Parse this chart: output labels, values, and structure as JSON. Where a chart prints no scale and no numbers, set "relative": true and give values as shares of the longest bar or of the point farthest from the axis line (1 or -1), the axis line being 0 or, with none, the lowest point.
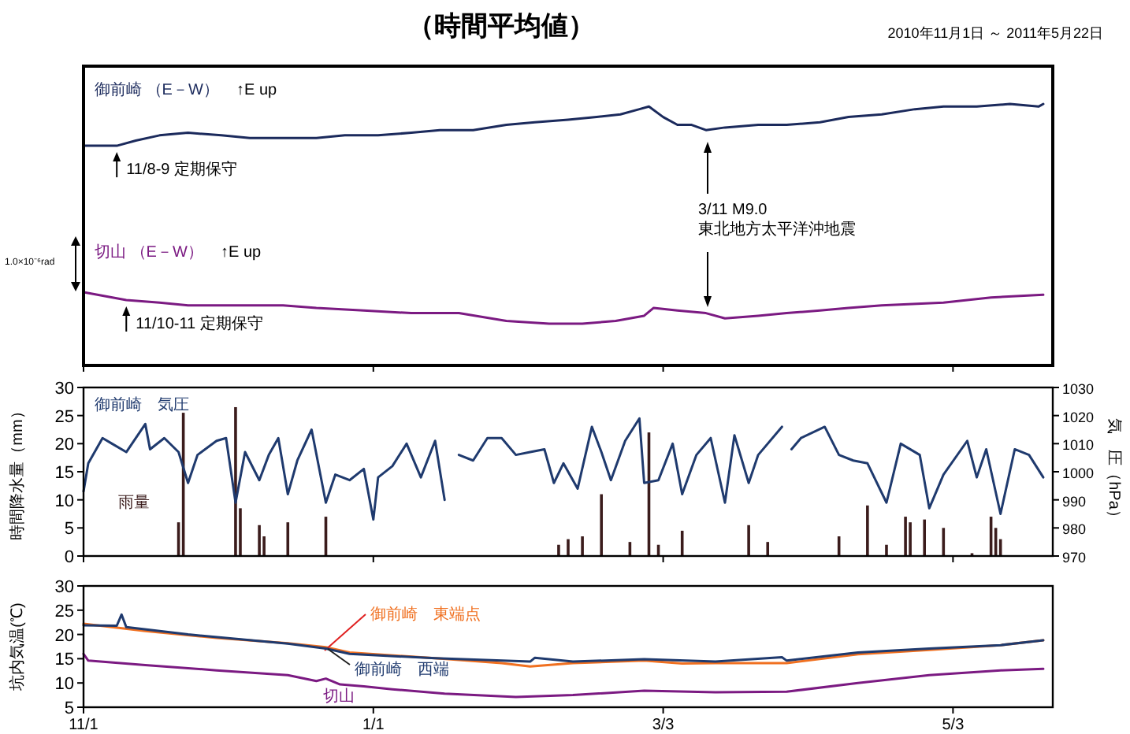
{
  "chart_data": [
    {
      "type": "line",
      "title": "（時間平均値）",
      "subtitle": "2010年11月1日 ～ 2011年5月22日",
      "relative": true,
      "tick_labels": false,
      "xlim": [
        "2010-11-01",
        "2011-05-24"
      ],
      "xticks": [
        {
          "value": "2010-11-01",
          "label": null
        },
        {
          "value": "2011-01-01",
          "label": null
        },
        {
          "value": "2011-03-03",
          "label": null
        },
        {
          "value": "2011-05-03",
          "label": null
        }
      ],
      "series": [
        {
          "name": "御前崎 （E－W）",
          "color": "#1b2a5c",
          "x": [
            "2010-11-01",
            "2010-11-08",
            "2010-11-12",
            "2010-11-17",
            "2010-11-23",
            "2010-11-30",
            "2010-12-06",
            "2010-12-13",
            "2010-12-20",
            "2010-12-26",
            "2011-01-02",
            "2011-01-09",
            "2011-01-15",
            "2011-01-22",
            "2011-01-29",
            "2011-02-04",
            "2011-02-11",
            "2011-02-17",
            "2011-02-22",
            "2011-02-26",
            "2011-02-28",
            "2011-03-03",
            "2011-03-06",
            "2011-03-09",
            "2011-03-12",
            "2011-03-16",
            "2011-03-23",
            "2011-03-29",
            "2011-04-05",
            "2011-04-11",
            "2011-04-18",
            "2011-04-25",
            "2011-05-01",
            "2011-05-08",
            "2011-05-15",
            "2011-05-21",
            "2011-05-22"
          ],
          "values": [
            0.84,
            0.84,
            0.86,
            0.88,
            0.89,
            0.88,
            0.87,
            0.87,
            0.87,
            0.88,
            0.88,
            0.89,
            0.9,
            0.9,
            0.92,
            0.93,
            0.94,
            0.95,
            0.96,
            0.98,
            0.99,
            0.95,
            0.92,
            0.92,
            0.9,
            0.91,
            0.92,
            0.92,
            0.93,
            0.95,
            0.96,
            0.98,
            0.99,
            0.99,
            1,
            0.99,
            1
          ]
        },
        {
          "name": "切山 （E－W）",
          "color": "#7b1a82",
          "x": [
            "2010-11-01",
            "2010-11-10",
            "2010-11-17",
            "2010-11-23",
            "2010-12-03",
            "2010-12-13",
            "2010-12-20",
            "2010-12-30",
            "2011-01-09",
            "2011-01-19",
            "2011-01-29",
            "2011-02-07",
            "2011-02-14",
            "2011-02-21",
            "2011-02-27",
            "2011-03-01",
            "2011-03-06",
            "2011-03-12",
            "2011-03-16",
            "2011-03-23",
            "2011-03-29",
            "2011-04-05",
            "2011-04-11",
            "2011-04-18",
            "2011-05-01",
            "2011-05-11",
            "2011-05-22"
          ],
          "values": [
            0.28,
            0.25,
            0.24,
            0.23,
            0.23,
            0.23,
            0.22,
            0.21,
            0.2,
            0.2,
            0.17,
            0.16,
            0.16,
            0.17,
            0.19,
            0.22,
            0.21,
            0.2,
            0.18,
            0.19,
            0.2,
            0.21,
            0.22,
            0.23,
            0.24,
            0.26,
            0.27
          ]
        }
      ],
      "annotations": [
        "↑E up",
        "↑E up",
        {
          "text": "11/8-9 定期保守",
          "x": "2010-11-08",
          "y": 0.84
        },
        {
          "text": "11/10-11 定期保守",
          "x": "2010-11-10",
          "y": 0.25
        },
        "3/11 M9.0\n東北地方太平洋沖地震",
        "1.0×10⁻⁶rad"
      ]
    },
    {
      "type": "line",
      "tick_labels": "y",
      "xlim": [
        "2010-11-01",
        "2011-05-24"
      ],
      "xticks": [
        {
          "value": "2010-11-01",
          "label": null
        },
        {
          "value": "2011-01-01",
          "label": null
        },
        {
          "value": "2011-03-03",
          "label": null
        },
        {
          "value": "2011-05-03",
          "label": null
        }
      ],
      "ylabel": "時間降水量（mm）",
      "y2label": "気　圧（hPa）",
      "ylim": [
        0,
        30
      ],
      "yticks": [
        0,
        5,
        10,
        15,
        20,
        25,
        30
      ],
      "y2lim": [
        970,
        1030
      ],
      "y2ticks": [
        970,
        980,
        990,
        1000,
        1010,
        1020,
        1030
      ],
      "series": [
        {
          "name": "雨量",
          "type": "bar",
          "color": "#3b1c1c",
          "x": [
            "2010-11-21",
            "2010-11-22",
            "2010-12-03",
            "2010-12-04",
            "2010-12-08",
            "2010-12-09",
            "2010-12-14",
            "2010-12-22",
            "2011-02-09",
            "2011-02-11",
            "2011-02-14",
            "2011-02-18",
            "2011-02-24",
            "2011-02-28",
            "2011-03-02",
            "2011-03-07",
            "2011-03-21",
            "2011-03-25",
            "2011-04-09",
            "2011-04-15",
            "2011-04-19",
            "2011-04-23",
            "2011-04-24",
            "2011-04-27",
            "2011-05-01",
            "2011-05-07",
            "2011-05-11",
            "2011-05-12",
            "2011-05-13"
          ],
          "values": [
            6,
            25.5,
            26.5,
            8.5,
            5.5,
            3.5,
            6,
            7,
            2,
            3,
            3.5,
            11,
            2.5,
            22,
            2,
            4.5,
            5.5,
            2.5,
            3.5,
            9,
            2,
            7,
            6,
            6.5,
            5,
            0.5,
            7,
            5,
            3
          ]
        },
        {
          "name": "御前崎　気圧",
          "axis": "y2",
          "color": "#1f3a6e",
          "x": [
            "2010-11-01",
            "2010-11-02",
            "2010-11-05",
            "2010-11-07",
            "2010-11-10",
            "2010-11-14",
            "2010-11-15",
            "2010-11-18",
            "2010-11-21",
            "2010-11-23",
            "2010-11-25",
            "2010-11-29",
            "2010-12-01",
            "2010-12-03",
            "2010-12-05",
            "2010-12-08",
            "2010-12-10",
            "2010-12-12",
            "2010-12-14",
            "2010-12-16",
            "2010-12-19",
            "2010-12-22",
            "2010-12-24",
            "2010-12-27",
            "2010-12-30",
            "2011-01-01",
            "2011-01-02",
            "2011-01-05",
            "2011-01-08",
            "2011-01-11",
            "2011-01-14",
            "2011-01-16",
            "2011-01-18",
            "2011-01-19",
            "2011-01-22",
            "2011-01-25",
            "2011-01-28",
            "2011-01-31",
            "2011-02-03",
            "2011-02-06",
            "2011-02-08",
            "2011-02-10",
            "2011-02-13",
            "2011-02-16",
            "2011-02-18",
            "2011-02-20",
            "2011-02-23",
            "2011-02-26",
            "2011-02-27",
            "2011-03-02",
            "2011-03-05",
            "2011-03-07",
            "2011-03-10",
            "2011-03-13",
            "2011-03-16",
            "2011-03-18",
            "2011-03-21",
            "2011-03-23",
            "2011-03-28",
            "2011-03-29",
            "2011-03-30",
            "2011-04-01",
            "2011-04-06",
            "2011-04-09",
            "2011-04-12",
            "2011-04-15",
            "2011-04-19",
            "2011-04-22",
            "2011-04-26",
            "2011-04-28",
            "2011-05-01",
            "2011-05-06",
            "2011-05-08",
            "2011-05-10",
            "2011-05-13",
            "2011-05-16",
            "2011-05-19",
            "2011-05-22"
          ],
          "values": [
            993,
            1003,
            1012,
            1010,
            1007,
            1017,
            1008,
            1012,
            1007,
            996,
            1006,
            1011,
            1012,
            989,
            1007,
            997,
            1006,
            1012,
            992,
            1004,
            1015,
            989,
            999,
            997,
            1001,
            983,
            998,
            1002,
            1010,
            998,
            1011,
            990,
            null,
            1006,
            1004,
            1012,
            1012,
            1006,
            1007,
            1008,
            996,
            1003,
            994,
            1016,
            1007,
            997,
            1011,
            1019,
            996,
            997,
            1010,
            992,
            1006,
            1012,
            989,
            1013,
            996,
            1006,
            1016,
            null,
            1008,
            1012,
            1016,
            1006,
            1004,
            1003,
            989,
            1010,
            1006,
            987,
            999,
            1011,
            998,
            1008,
            985,
            1008,
            1006,
            998
          ]
        }
      ]
    },
    {
      "type": "line",
      "xlim": [
        "2010-11-01",
        "2011-05-24"
      ],
      "xticks": [
        {
          "value": "2010-11-01",
          "label": "11/1"
        },
        {
          "value": "2011-01-01",
          "label": "1/1"
        },
        {
          "value": "2011-03-03",
          "label": "3/3"
        },
        {
          "value": "2011-05-03",
          "label": "5/3"
        }
      ],
      "ylabel": "坑内気温(℃)",
      "ylim": [
        5,
        30
      ],
      "yticks": [
        5,
        10,
        15,
        20,
        25,
        30
      ],
      "series": [
        {
          "name": "御前崎　東端点",
          "color": "#f07020",
          "x": [
            "2010-11-01",
            "2010-11-14",
            "2010-11-29",
            "2010-12-14",
            "2010-12-22",
            "2010-12-27",
            "2011-01-14",
            "2011-01-28",
            "2011-02-03",
            "2011-02-12",
            "2011-02-27",
            "2011-03-07",
            "2011-03-14",
            "2011-03-29",
            "2011-04-13",
            "2011-04-28",
            "2011-05-13",
            "2011-05-22"
          ],
          "values": [
            22.2,
            20.7,
            19.3,
            18.2,
            17.4,
            16.3,
            15.1,
            14.1,
            13.4,
            14.1,
            14.6,
            14,
            14.1,
            14.1,
            15.9,
            16.8,
            17.8,
            18.8
          ]
        },
        {
          "name": "御前崎　西端",
          "color": "#1f3a6e",
          "x": [
            "2010-11-01",
            "2010-11-08",
            "2010-11-09",
            "2010-11-10",
            "2010-11-23",
            "2010-12-14",
            "2010-12-22",
            "2010-12-27",
            "2011-01-14",
            "2011-02-03",
            "2011-02-04",
            "2011-02-12",
            "2011-02-27",
            "2011-03-14",
            "2011-03-28",
            "2011-03-29",
            "2011-04-13",
            "2011-04-28",
            "2011-05-13",
            "2011-05-22"
          ],
          "values": [
            21.9,
            21.8,
            24.1,
            21.5,
            20,
            18.1,
            17.1,
            16,
            15.1,
            14.4,
            15.2,
            14.4,
            14.9,
            14.4,
            15.3,
            14.6,
            16.3,
            17.1,
            17.8,
            18.8
          ]
        },
        {
          "name": "切山",
          "color": "#7b1a82",
          "x": [
            "2010-11-01",
            "2010-11-02",
            "2010-11-14",
            "2010-11-29",
            "2010-12-14",
            "2010-12-20",
            "2010-12-22",
            "2010-12-25",
            "2010-12-30",
            "2011-01-05",
            "2011-01-16",
            "2011-01-31",
            "2011-02-12",
            "2011-02-27",
            "2011-03-14",
            "2011-03-29",
            "2011-04-13",
            "2011-04-28",
            "2011-05-13",
            "2011-05-22"
          ],
          "values": [
            16,
            14.6,
            13.7,
            12.6,
            11.6,
            10.4,
            10.9,
            9.7,
            9.3,
            8.7,
            7.8,
            7.1,
            7.5,
            8.4,
            8.1,
            8.2,
            10,
            11.6,
            12.6,
            12.9
          ]
        }
      ]
    }
  ]
}
